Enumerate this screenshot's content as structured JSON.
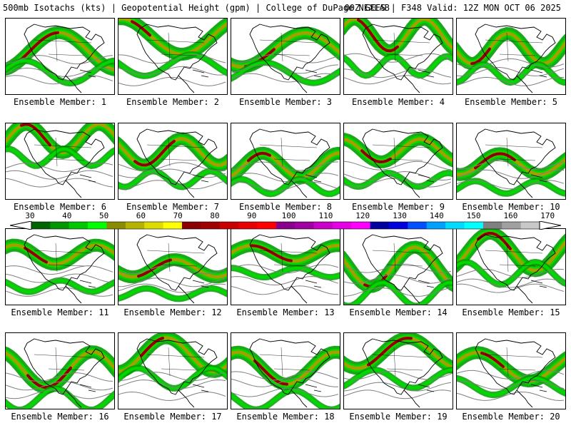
{
  "title": {
    "left": "500mb Isotachs (kts) | Geopotential Height (gpm) | College of DuPage NEXLAB",
    "right": "00Z GEFS | F348 Valid: 12Z MON OCT 06 2025"
  },
  "member_prefix": "Ensemble Member:",
  "members": [
    "1",
    "2",
    "3",
    "4",
    "5",
    "6",
    "7",
    "8",
    "9",
    "10",
    "11",
    "12",
    "13",
    "14",
    "15",
    "16",
    "17",
    "18",
    "19",
    "20"
  ],
  "colorbar": {
    "labels": [
      "30",
      "40",
      "50",
      "60",
      "70",
      "80",
      "90",
      "100",
      "110",
      "120",
      "130",
      "140",
      "150",
      "160",
      "170"
    ],
    "colors": [
      "#006400",
      "#009600",
      "#00c800",
      "#00ff00",
      "#8b8b00",
      "#b4b400",
      "#dcdc00",
      "#ffff00",
      "#8b0000",
      "#a00000",
      "#c80000",
      "#e60000",
      "#ff0000",
      "#8b008b",
      "#a000a0",
      "#c800c8",
      "#e600e6",
      "#ff00ff",
      "#0000a0",
      "#0000dc",
      "#0050ff",
      "#00a0ff",
      "#00dcff",
      "#00ffff",
      "#808080",
      "#a0a0a0",
      "#c8c8c8"
    ]
  },
  "style": {
    "jet_outer": "#00a000",
    "jet_mid": "#00d800",
    "jet_core": "#a0a000",
    "jet_max": "#8b0000",
    "height_contour": "#808080"
  }
}
